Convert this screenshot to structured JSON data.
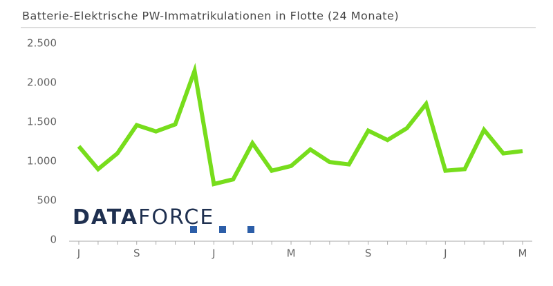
{
  "chart_data": {
    "type": "line",
    "title": "Batterie-Elektrische PW-Immatrikulationen in Flotte (24 Monate)",
    "categories": [
      "J",
      null,
      null,
      "S",
      null,
      null,
      null,
      "J",
      null,
      null,
      null,
      "M",
      null,
      null,
      null,
      "S",
      null,
      null,
      null,
      "J",
      null,
      null,
      null,
      "M"
    ],
    "series": [
      {
        "color": "#77dd1c",
        "values": [
          1190,
          900,
          1100,
          1460,
          1380,
          1470,
          2150,
          710,
          770,
          1230,
          880,
          940,
          1150,
          990,
          960,
          1390,
          1270,
          1420,
          1730,
          880,
          900,
          1400,
          1100,
          1130
        ]
      }
    ],
    "ylim": [
      0,
      2500
    ],
    "yticks": [
      0,
      500,
      {
        "value": 1000,
        "label": "1.000"
      },
      {
        "value": 1500,
        "label": "1.500"
      },
      {
        "value": 2000,
        "label": "2.000"
      },
      {
        "value": 2500,
        "label": "2.500"
      }
    ],
    "grid": false
  },
  "logo": {
    "bold": "DATA",
    "light": "FORCE"
  }
}
